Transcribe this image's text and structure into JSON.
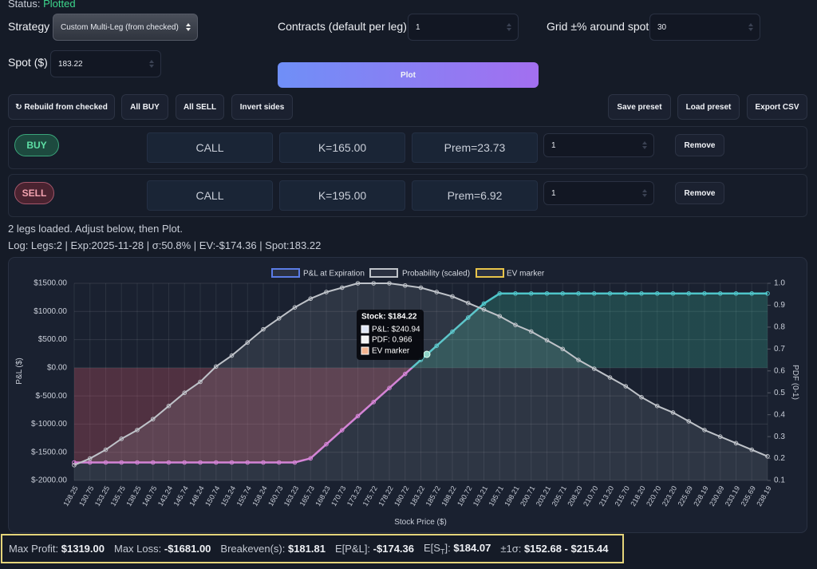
{
  "status": {
    "label": "Status:",
    "value": "Plotted"
  },
  "controls": {
    "strategy": {
      "label": "Strategy",
      "value": "Custom Multi-Leg (from checked)"
    },
    "contracts": {
      "label": "Contracts (default per leg)",
      "value": "1"
    },
    "grid": {
      "label": "Grid ±% around spot",
      "value": "30"
    },
    "spot": {
      "label": "Spot ($)",
      "value": "183.22"
    },
    "plot": "Plot"
  },
  "buttons": [
    "↻ Rebuild from checked",
    "All BUY",
    "All SELL",
    "Invert sides",
    "Save preset",
    "Load preset",
    "Export CSV"
  ],
  "legs": [
    {
      "side": "BUY",
      "type": "CALL",
      "strike": "K=165.00",
      "premium": "Prem=23.73",
      "qty": "1",
      "remove": "Remove"
    },
    {
      "side": "SELL",
      "type": "CALL",
      "strike": "K=195.00",
      "premium": "Prem=6.92",
      "qty": "1",
      "remove": "Remove"
    }
  ],
  "message": "2 legs loaded. Adjust below, then Plot.",
  "log": "Log: Legs:2 | Exp:2025-11-28 | σ:50.8% | EV:-$174.36 | Spot:183.22",
  "summary": [
    {
      "label": "Max Profit:",
      "value": "$1319.00"
    },
    {
      "label": "Max Loss:",
      "value": "-$1681.00"
    },
    {
      "label": "Breakeven(s):",
      "value": "$181.81"
    },
    {
      "label": "E[P&L]:",
      "value": "-$174.36"
    },
    {
      "label": "E[S",
      "label_sub": "T",
      "label_end": "]:",
      "value": "$184.07"
    },
    {
      "label": "±1σ:",
      "value": "$152.68 - $215.44"
    }
  ],
  "chart_data": {
    "type": "line",
    "x_label": "Stock Price ($)",
    "y_label": "P&L ($)",
    "y2_label": "PDF (0-1)",
    "categories": [
      "128.25",
      "130.75",
      "133.25",
      "135.75",
      "138.25",
      "140.75",
      "143.24",
      "145.74",
      "148.24",
      "150.74",
      "153.24",
      "155.74",
      "158.24",
      "160.73",
      "163.23",
      "165.73",
      "168.23",
      "170.73",
      "173.23",
      "175.72",
      "178.22",
      "180.72",
      "183.22",
      "185.72",
      "188.22",
      "190.72",
      "193.21",
      "195.71",
      "198.21",
      "200.71",
      "203.21",
      "205.71",
      "208.20",
      "210.70",
      "213.20",
      "215.70",
      "218.20",
      "220.70",
      "223.20",
      "225.69",
      "228.19",
      "230.69",
      "233.19",
      "235.69",
      "238.19"
    ],
    "series": [
      {
        "name": "P&L at Expiration",
        "color": "#5b7ce6",
        "line_color_positive": "#4fc5c9",
        "line_color_negative": "#d77ad6",
        "fill_positive": "rgba(60,190,160,0.25)",
        "fill_negative": "rgba(220,90,110,0.28)",
        "values": [
          -1681,
          -1681,
          -1681,
          -1681,
          -1681,
          -1681,
          -1681,
          -1681,
          -1681,
          -1681,
          -1681,
          -1681,
          -1681,
          -1681,
          -1681,
          -1608,
          -1358,
          -1108,
          -858,
          -609,
          -359,
          -109,
          141,
          391,
          641,
          891,
          1140,
          1319,
          1319,
          1319,
          1319,
          1319,
          1319,
          1319,
          1319,
          1319,
          1319,
          1319,
          1319,
          1319,
          1319,
          1319,
          1319,
          1319,
          1319
        ]
      },
      {
        "name": "Probability (scaled)",
        "color": "#bfc3c9",
        "fill": "rgba(200,205,215,0.12)",
        "axis": "y2",
        "values": [
          0.17,
          0.2,
          0.24,
          0.29,
          0.33,
          0.38,
          0.44,
          0.5,
          0.55,
          0.62,
          0.67,
          0.73,
          0.79,
          0.84,
          0.89,
          0.93,
          0.96,
          0.98,
          1.0,
          1.0,
          1.0,
          0.99,
          0.98,
          0.96,
          0.94,
          0.91,
          0.88,
          0.85,
          0.81,
          0.78,
          0.74,
          0.7,
          0.65,
          0.61,
          0.57,
          0.53,
          0.48,
          0.44,
          0.41,
          0.37,
          0.33,
          0.3,
          0.27,
          0.24,
          0.21
        ]
      }
    ],
    "ev_marker": {
      "name": "EV marker",
      "color": "#e8c44a"
    },
    "ylim": [
      -2000,
      1500
    ],
    "yticks": [
      {
        "value": -2000,
        "label": "$-2000.00"
      },
      {
        "value": -1500,
        "label": "$-1500.00"
      },
      {
        "value": -1000,
        "label": "$-1000.00"
      },
      {
        "value": -500,
        "label": "$-500.00"
      },
      {
        "value": 0,
        "label": "$0.00"
      },
      {
        "value": 500,
        "label": "$500.00"
      },
      {
        "value": 1000,
        "label": "$1000.00"
      },
      {
        "value": 1500,
        "label": "$1500.00"
      }
    ],
    "y2lim": [
      0.1,
      1.0
    ],
    "y2ticks": [
      0.1,
      0.2,
      0.3,
      0.4,
      0.5,
      0.6,
      0.7,
      0.8,
      0.9,
      {
        "value": 1,
        "label": "1.0"
      }
    ],
    "grid": true,
    "tooltip": {
      "title": "Stock: $184.22",
      "lines": [
        "P&L: $240.94",
        "PDF: 0.966",
        "EV marker"
      ]
    }
  }
}
